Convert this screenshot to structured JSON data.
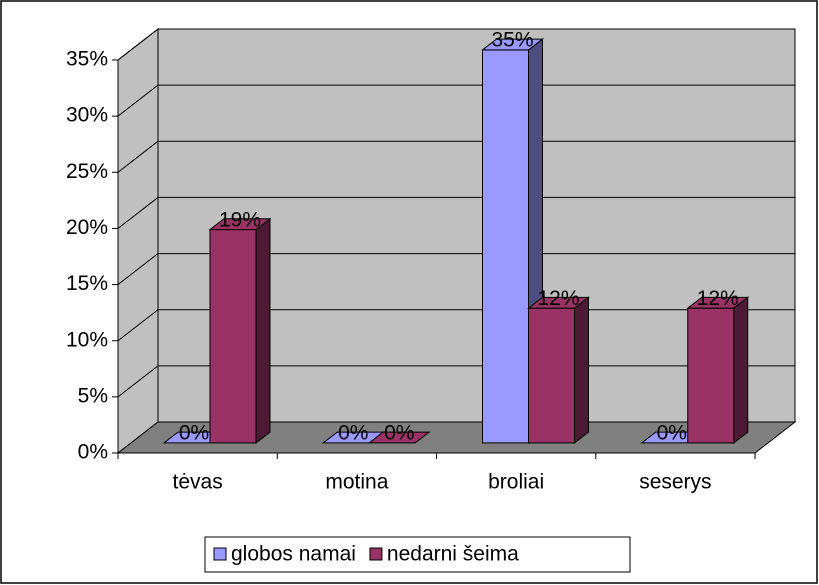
{
  "chart_data": {
    "type": "bar3d",
    "categories": [
      "tėvas",
      "motina",
      "broliai",
      "seserys"
    ],
    "series": [
      {
        "name": "globos namai",
        "color": "#9999ff",
        "values": [
          0,
          0,
          35,
          0
        ],
        "value_labels": [
          "0%",
          "0%",
          "35%",
          "0%"
        ]
      },
      {
        "name": "nedarni šeima",
        "color": "#993366",
        "values": [
          19,
          0,
          12,
          12
        ],
        "value_labels": [
          "19%",
          "0%",
          "12%",
          "12%"
        ]
      }
    ],
    "ylim": [
      0,
      35
    ],
    "yticks": [
      {
        "value": 0,
        "label": "0%"
      },
      {
        "value": 5,
        "label": "5%"
      },
      {
        "value": 10,
        "label": "10%"
      },
      {
        "value": 15,
        "label": "15%"
      },
      {
        "value": 20,
        "label": "20%"
      },
      {
        "value": 25,
        "label": "25%"
      },
      {
        "value": 30,
        "label": "30%"
      },
      {
        "value": 35,
        "label": "35%"
      }
    ],
    "grid": true,
    "legend": "bottom"
  }
}
